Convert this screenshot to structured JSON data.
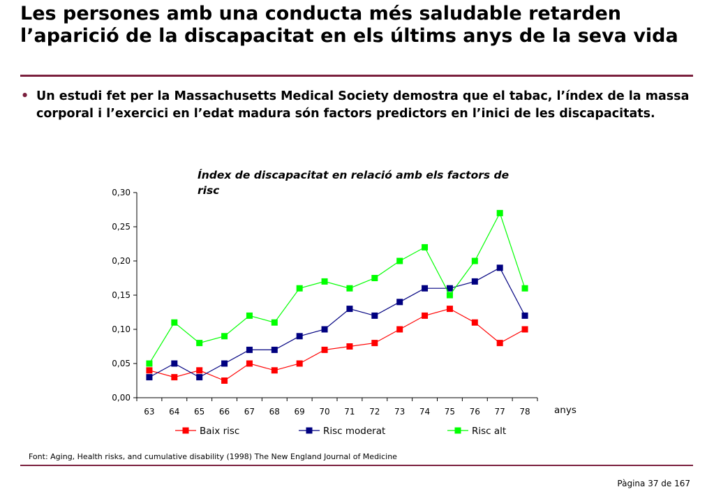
{
  "slide": {
    "title": "Les persones amb una conducta més saludable retarden l’aparició de la discapacitat en els últims anys de la seva vida",
    "bullet": "Un estudi fet per la Massachusetts Medical Society demostra que el tabac, l’índex de la massa corporal i l’exercici en l’edat madura són factors predictors en l’inici de les discapacitats.",
    "bullet_marker": "•",
    "source": "Font: Aging, Health risks, and cumulative disability (1998) The New England Journal of Medicine",
    "page": "Pàgina 37 de 167",
    "accent_color": "#7a1f3d"
  },
  "chart_data": {
    "type": "line",
    "title": "Índex de discapacitat en relació amb els factors de risc",
    "xlabel": "anys",
    "ylabel": "",
    "categories": [
      "63",
      "64",
      "65",
      "66",
      "67",
      "68",
      "69",
      "70",
      "71",
      "72",
      "73",
      "74",
      "75",
      "76",
      "77",
      "78"
    ],
    "ylim": [
      0,
      0.3
    ],
    "yticks": [
      "0,00",
      "0,05",
      "0,10",
      "0,15",
      "0,20",
      "0,25",
      "0,30"
    ],
    "grid": false,
    "legend_position": "bottom",
    "series": [
      {
        "name": "Baix risc",
        "color": "#ff0000",
        "values": [
          0.04,
          0.03,
          0.04,
          0.025,
          0.05,
          0.04,
          0.05,
          0.07,
          0.075,
          0.08,
          0.1,
          0.12,
          0.13,
          0.11,
          0.08,
          0.1
        ]
      },
      {
        "name": "Risc moderat",
        "color": "#000080",
        "values": [
          0.03,
          0.05,
          0.03,
          0.05,
          0.07,
          0.07,
          0.09,
          0.1,
          0.13,
          0.12,
          0.14,
          0.16,
          0.16,
          0.17,
          0.19,
          0.12
        ]
      },
      {
        "name": "Risc alt",
        "color": "#00ff00",
        "values": [
          0.05,
          0.11,
          0.08,
          0.09,
          0.12,
          0.11,
          0.16,
          0.17,
          0.16,
          0.175,
          0.2,
          0.22,
          0.15,
          0.2,
          0.27,
          0.16
        ]
      }
    ]
  }
}
